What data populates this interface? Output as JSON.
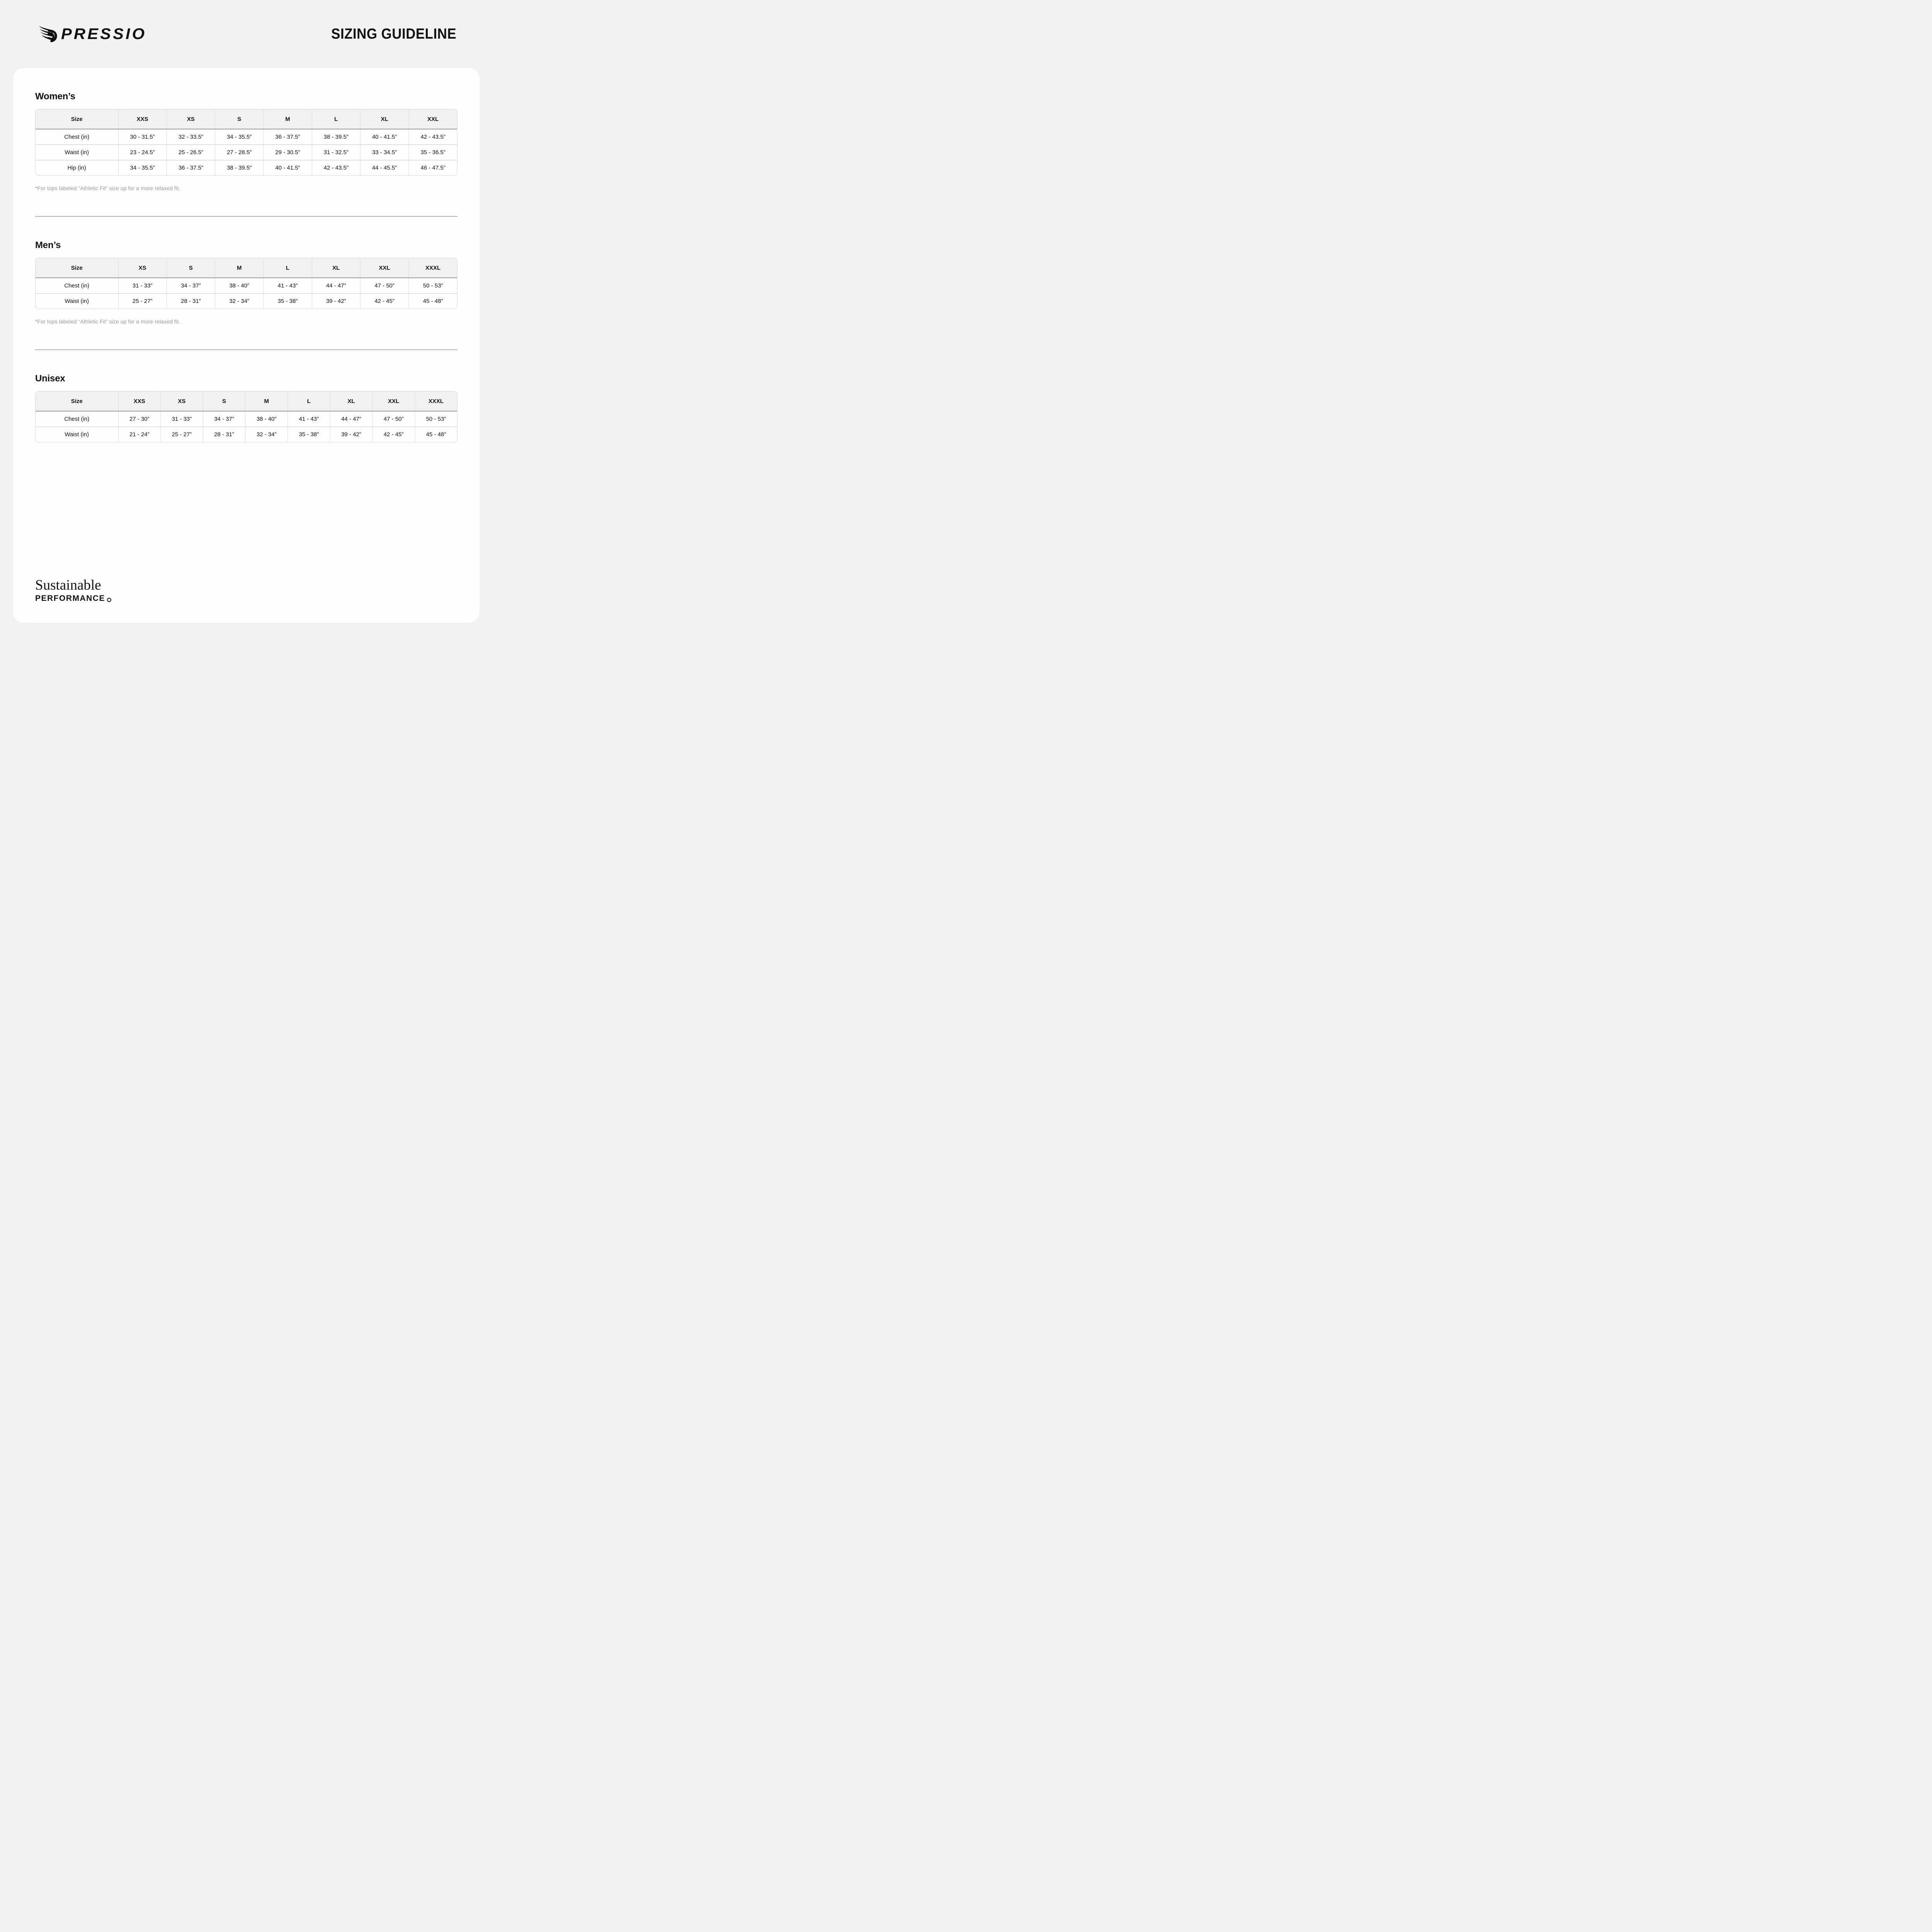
{
  "header": {
    "logo_text": "PRESSIO",
    "title": "SIZING GUIDELINE"
  },
  "sections": [
    {
      "id": "womens",
      "heading": "Women’s",
      "columns": [
        "Size",
        "XXS",
        "XS",
        "S",
        "M",
        "L",
        "XL",
        "XXL"
      ],
      "rows": [
        {
          "label": "Chest (in)",
          "values": [
            "30 - 31.5”",
            "32 - 33.5”",
            "34 - 35.5”",
            "36 - 37.5”",
            "38 - 39.5”",
            "40 - 41.5”",
            "42 - 43.5”"
          ]
        },
        {
          "label": "Waist (in)",
          "values": [
            "23 - 24.5”",
            "25 - 26.5”",
            "27 - 28.5”",
            "29 - 30.5”",
            "31 - 32.5”",
            "33 - 34.5”",
            "35 - 36.5”"
          ]
        },
        {
          "label": "Hip (in)",
          "values": [
            "34 - 35.5”",
            "36 - 37.5”",
            "38 - 39.5”",
            "40 - 41.5”",
            "42 - 43.5”",
            "44 - 45.5”",
            "46 - 47.5”"
          ]
        }
      ],
      "footnote": "*For tops labeled “Athletic Fit” size up for a more relaxed fit."
    },
    {
      "id": "mens",
      "heading": "Men’s",
      "columns": [
        "Size",
        "XS",
        "S",
        "M",
        "L",
        "XL",
        "XXL",
        "XXXL"
      ],
      "rows": [
        {
          "label": "Chest (in)",
          "values": [
            "31 - 33”",
            "34 - 37”",
            "38 - 40”",
            "41 - 43”",
            "44 - 47”",
            "47 - 50”",
            "50 - 53”"
          ]
        },
        {
          "label": "Waist (in)",
          "values": [
            "25 - 27”",
            "28 - 31”",
            "32 - 34”",
            "35 - 38”",
            "39 - 42”",
            "42 - 45”",
            "45 - 48”"
          ]
        }
      ],
      "footnote": "*For tops labeled “Athletic Fit” size up for a more relaxed fit."
    },
    {
      "id": "unisex",
      "heading": "Unisex",
      "columns": [
        "Size",
        "XXS",
        "XS",
        "S",
        "M",
        "L",
        "XL",
        "XXL",
        "XXXL"
      ],
      "rows": [
        {
          "label": "Chest (in)",
          "values": [
            "27 - 30”",
            "31 - 33”",
            "34 - 37”",
            "38 - 40”",
            "41 - 43”",
            "44 - 47”",
            "47 - 50”",
            "50 - 53”"
          ]
        },
        {
          "label": "Waist (in)",
          "values": [
            "21 - 24”",
            "25 - 27”",
            "28 - 31”",
            "32 - 34”",
            "35 - 38”",
            "39 - 42”",
            "42 - 45”",
            "45 - 48”"
          ]
        }
      ],
      "footnote": ""
    }
  ],
  "footer": {
    "line1": "Sustainable",
    "line2": "PERFORMANCE"
  },
  "colors": {
    "page_bg": "#f2f2f2",
    "card_bg": "#fdfdfd",
    "table_header_bg": "#f1f1f1",
    "brand_black": "#121212",
    "footnote_gray": "#9a9a9a"
  }
}
